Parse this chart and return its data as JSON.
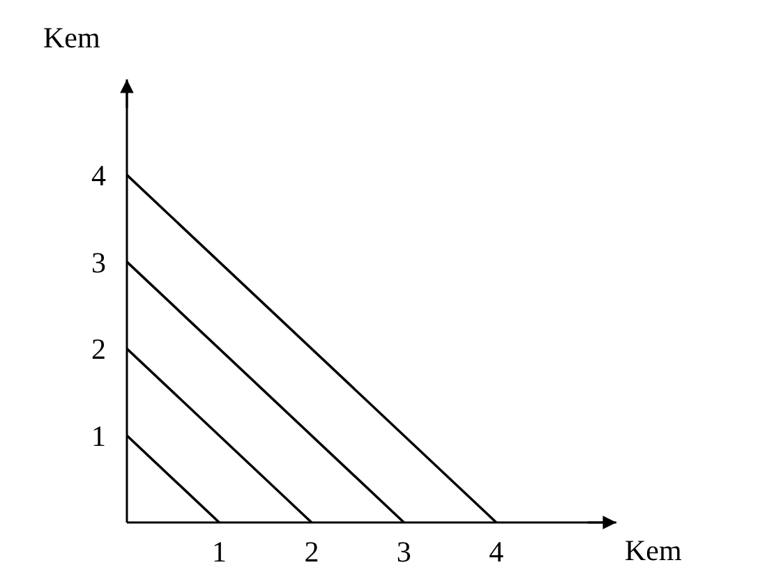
{
  "chart_data": {
    "type": "line",
    "xlabel": "Kem",
    "ylabel": "Kem",
    "series": [
      {
        "x": [
          0,
          1
        ],
        "values": [
          1,
          0
        ],
        "color": "#000000"
      },
      {
        "x": [
          0,
          2
        ],
        "values": [
          2,
          0
        ],
        "color": "#000000"
      },
      {
        "x": [
          0,
          3
        ],
        "values": [
          3,
          0
        ],
        "color": "#000000"
      },
      {
        "x": [
          0,
          4
        ],
        "values": [
          4,
          0
        ],
        "color": "#000000"
      }
    ],
    "xlim": [
      0,
      5.3
    ],
    "ylim": [
      0,
      5.1
    ],
    "xticks": [
      1,
      2,
      3,
      4
    ],
    "yticks": [
      1,
      2,
      3,
      4
    ],
    "marker": "none",
    "line_style": "solid"
  }
}
